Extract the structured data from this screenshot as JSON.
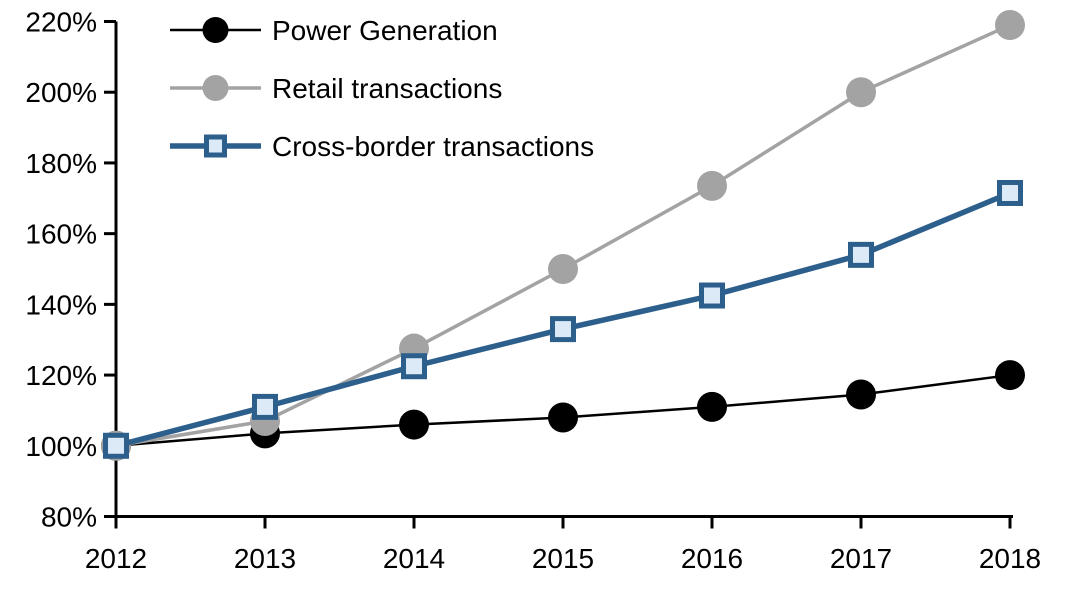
{
  "chart_data": {
    "type": "line",
    "title": "",
    "x": [
      2012,
      2013,
      2014,
      2015,
      2016,
      2017,
      2018
    ],
    "x_labels": [
      "2012",
      "2013",
      "2014",
      "2015",
      "2016",
      "2017",
      "2018"
    ],
    "series": [
      {
        "name": "Power Generation",
        "values": [
          100,
          103.5,
          106,
          108,
          111,
          114.5,
          120
        ],
        "color": "#000000",
        "marker": "circle",
        "marker_fill": "#000000",
        "line_width": 2.5
      },
      {
        "name": "Retail transactions",
        "values": [
          100,
          107,
          127.5,
          150,
          173.5,
          200,
          219
        ],
        "color": "#A3A3A3",
        "marker": "circle",
        "marker_fill": "#A3A3A3",
        "line_width": 3.5
      },
      {
        "name": "Cross-border transactions",
        "values": [
          100,
          111,
          122.5,
          133,
          142.5,
          154,
          171.5
        ],
        "color": "#2D5F8C",
        "marker": "square",
        "marker_fill": "#DCE9F6",
        "line_width": 5.5
      }
    ],
    "y_axis": {
      "min": 80,
      "max": 220,
      "step": 20,
      "tick_labels": [
        "80%",
        "100%",
        "120%",
        "140%",
        "160%",
        "180%",
        "200%",
        "220%"
      ],
      "format": "percent"
    },
    "x_axis": {
      "label": ""
    },
    "legend": {
      "position": "top-left",
      "items": [
        "Power Generation",
        "Retail transactions",
        "Cross-border transactions"
      ]
    },
    "grid": false,
    "background": "#ffffff",
    "text_color": "#000000"
  }
}
